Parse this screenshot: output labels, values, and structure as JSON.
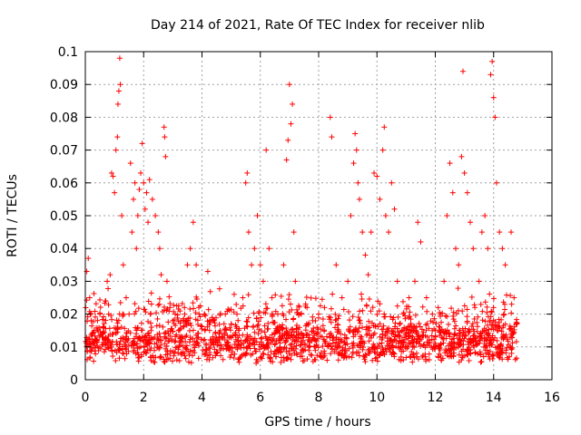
{
  "chart_data": {
    "type": "scatter",
    "title": "Day 214 of 2021, Rate Of TEC Index for receiver nlib",
    "xlabel": "GPS time / hours",
    "ylabel": "ROTI / TECUs",
    "xlim": [
      0,
      16
    ],
    "ylim": [
      0,
      0.1
    ],
    "x_ticks": [
      "0",
      "2",
      "4",
      "6",
      "8",
      "10",
      "12",
      "14",
      "16"
    ],
    "y_ticks": [
      "0",
      "0.01",
      "0.02",
      "0.03",
      "0.04",
      "0.05",
      "0.06",
      "0.07",
      "0.08",
      "0.09",
      "0.1"
    ],
    "x_tick_values": [
      0,
      2,
      4,
      6,
      8,
      10,
      12,
      14,
      16
    ],
    "y_tick_values": [
      0,
      0.01,
      0.02,
      0.03,
      0.04,
      0.05,
      0.06,
      0.07,
      0.08,
      0.09,
      0.1
    ],
    "grid": true,
    "marker": "+",
    "color": "#ff0000",
    "series": [
      {
        "name": "ROTI",
        "points": [
          [
            0.05,
            0.033
          ],
          [
            0.1,
            0.037
          ],
          [
            0.15,
            0.025
          ],
          [
            0.2,
            0.018
          ],
          [
            0.3,
            0.015
          ],
          [
            0.4,
            0.012
          ],
          [
            0.5,
            0.02
          ],
          [
            0.6,
            0.014
          ],
          [
            0.7,
            0.024
          ],
          [
            0.75,
            0.03
          ],
          [
            0.8,
            0.02
          ],
          [
            0.85,
            0.032
          ],
          [
            0.9,
            0.063
          ],
          [
            0.95,
            0.062
          ],
          [
            1.0,
            0.057
          ],
          [
            1.05,
            0.07
          ],
          [
            1.1,
            0.074
          ],
          [
            1.12,
            0.084
          ],
          [
            1.15,
            0.088
          ],
          [
            1.18,
            0.098
          ],
          [
            1.2,
            0.09
          ],
          [
            1.25,
            0.05
          ],
          [
            1.3,
            0.035
          ],
          [
            1.4,
            0.025
          ],
          [
            1.5,
            0.02
          ],
          [
            1.55,
            0.066
          ],
          [
            1.6,
            0.045
          ],
          [
            1.65,
            0.055
          ],
          [
            1.7,
            0.06
          ],
          [
            1.75,
            0.04
          ],
          [
            1.8,
            0.05
          ],
          [
            1.85,
            0.058
          ],
          [
            1.9,
            0.063
          ],
          [
            1.95,
            0.072
          ],
          [
            2.0,
            0.06
          ],
          [
            2.05,
            0.052
          ],
          [
            2.1,
            0.057
          ],
          [
            2.15,
            0.048
          ],
          [
            2.2,
            0.061
          ],
          [
            2.3,
            0.055
          ],
          [
            2.4,
            0.05
          ],
          [
            2.5,
            0.045
          ],
          [
            2.55,
            0.04
          ],
          [
            2.6,
            0.032
          ],
          [
            2.7,
            0.077
          ],
          [
            2.72,
            0.074
          ],
          [
            2.75,
            0.068
          ],
          [
            2.8,
            0.03
          ],
          [
            2.9,
            0.022
          ],
          [
            3.0,
            0.018
          ],
          [
            3.2,
            0.015
          ],
          [
            3.4,
            0.022
          ],
          [
            3.5,
            0.035
          ],
          [
            3.6,
            0.04
          ],
          [
            3.7,
            0.048
          ],
          [
            3.8,
            0.035
          ],
          [
            3.9,
            0.02
          ],
          [
            4.1,
            0.015
          ],
          [
            4.2,
            0.033
          ],
          [
            4.4,
            0.018
          ],
          [
            4.6,
            0.014
          ],
          [
            4.8,
            0.02
          ],
          [
            5.0,
            0.017
          ],
          [
            5.2,
            0.02
          ],
          [
            5.4,
            0.025
          ],
          [
            5.5,
            0.06
          ],
          [
            5.55,
            0.063
          ],
          [
            5.6,
            0.045
          ],
          [
            5.7,
            0.035
          ],
          [
            5.8,
            0.04
          ],
          [
            5.9,
            0.05
          ],
          [
            6.0,
            0.035
          ],
          [
            6.1,
            0.03
          ],
          [
            6.2,
            0.07
          ],
          [
            6.3,
            0.04
          ],
          [
            6.4,
            0.025
          ],
          [
            6.6,
            0.02
          ],
          [
            6.8,
            0.035
          ],
          [
            6.9,
            0.067
          ],
          [
            6.95,
            0.073
          ],
          [
            7.0,
            0.09
          ],
          [
            7.05,
            0.078
          ],
          [
            7.1,
            0.084
          ],
          [
            7.15,
            0.045
          ],
          [
            7.2,
            0.03
          ],
          [
            7.4,
            0.02
          ],
          [
            7.6,
            0.022
          ],
          [
            7.8,
            0.018
          ],
          [
            8.0,
            0.02
          ],
          [
            8.2,
            0.022
          ],
          [
            8.4,
            0.08
          ],
          [
            8.45,
            0.074
          ],
          [
            8.6,
            0.035
          ],
          [
            8.8,
            0.025
          ],
          [
            9.0,
            0.03
          ],
          [
            9.1,
            0.05
          ],
          [
            9.2,
            0.066
          ],
          [
            9.25,
            0.075
          ],
          [
            9.3,
            0.07
          ],
          [
            9.35,
            0.06
          ],
          [
            9.4,
            0.055
          ],
          [
            9.5,
            0.045
          ],
          [
            9.6,
            0.038
          ],
          [
            9.7,
            0.032
          ],
          [
            9.8,
            0.045
          ],
          [
            9.9,
            0.063
          ],
          [
            10.0,
            0.062
          ],
          [
            10.1,
            0.055
          ],
          [
            10.2,
            0.07
          ],
          [
            10.25,
            0.077
          ],
          [
            10.3,
            0.05
          ],
          [
            10.4,
            0.045
          ],
          [
            10.5,
            0.06
          ],
          [
            10.6,
            0.052
          ],
          [
            10.7,
            0.03
          ],
          [
            10.9,
            0.02
          ],
          [
            11.1,
            0.025
          ],
          [
            11.3,
            0.03
          ],
          [
            11.4,
            0.048
          ],
          [
            11.5,
            0.042
          ],
          [
            11.7,
            0.025
          ],
          [
            11.9,
            0.02
          ],
          [
            12.1,
            0.022
          ],
          [
            12.3,
            0.03
          ],
          [
            12.4,
            0.05
          ],
          [
            12.5,
            0.066
          ],
          [
            12.6,
            0.057
          ],
          [
            12.7,
            0.04
          ],
          [
            12.8,
            0.035
          ],
          [
            12.9,
            0.068
          ],
          [
            12.95,
            0.094
          ],
          [
            13.0,
            0.063
          ],
          [
            13.1,
            0.057
          ],
          [
            13.2,
            0.048
          ],
          [
            13.3,
            0.04
          ],
          [
            13.5,
            0.03
          ],
          [
            13.6,
            0.045
          ],
          [
            13.7,
            0.05
          ],
          [
            13.8,
            0.04
          ],
          [
            13.9,
            0.093
          ],
          [
            13.95,
            0.097
          ],
          [
            14.0,
            0.086
          ],
          [
            14.05,
            0.08
          ],
          [
            14.1,
            0.06
          ],
          [
            14.2,
            0.045
          ],
          [
            14.3,
            0.04
          ],
          [
            14.4,
            0.035
          ],
          [
            14.6,
            0.045
          ],
          [
            14.7,
            0.025
          ],
          [
            14.8,
            0.017
          ]
        ]
      }
    ],
    "background_band": {
      "description": "dense cloud of points between 0.005 and 0.03 across 0 to 14.8 hours",
      "x_range": [
        0,
        14.8
      ],
      "y_range": [
        0.005,
        0.03
      ]
    }
  }
}
